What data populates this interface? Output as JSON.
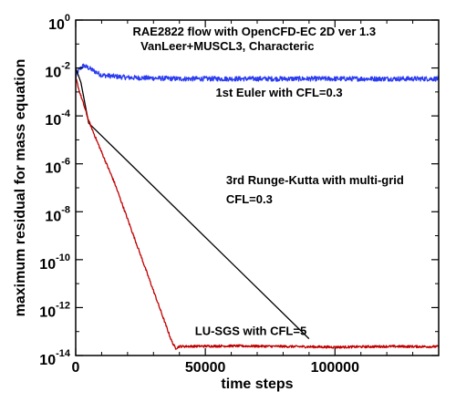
{
  "chart_data": {
    "type": "line",
    "title": "RAE2822 flow with OpenCFD-EC 2D ver 1.3",
    "subtitle": "VanLeer+MUSCL3, Characteric",
    "xlabel": "time steps",
    "ylabel": "maximum residual for mass equation",
    "xlim": [
      0,
      140000
    ],
    "ylim_log10": [
      -14,
      0
    ],
    "yscale": "log",
    "grid": false,
    "x_ticks": [
      {
        "value": 0,
        "label": "0"
      },
      {
        "value": 50000,
        "label": "50000"
      },
      {
        "value": 100000,
        "label": "100000"
      }
    ],
    "y_ticks": [
      {
        "exp": 0,
        "base": "10",
        "sup": "0"
      },
      {
        "exp": -2,
        "base": "10",
        "sup": "-2"
      },
      {
        "exp": -4,
        "base": "10",
        "sup": "-4"
      },
      {
        "exp": -6,
        "base": "10",
        "sup": "-6"
      },
      {
        "exp": -8,
        "base": "10",
        "sup": "-8"
      },
      {
        "exp": -10,
        "base": "10",
        "sup": "-10"
      },
      {
        "exp": -12,
        "base": "10",
        "sup": "-12"
      },
      {
        "exp": -14,
        "base": "10",
        "sup": "-14"
      }
    ],
    "series": [
      {
        "label": "1st Euler with CFL=0.3",
        "color": "#2a3cf0",
        "noise": 0.1,
        "x": [
          0,
          1000,
          3000,
          5000,
          10000,
          20000,
          40000,
          60000,
          80000,
          100000,
          120000,
          140000
        ],
        "log10_y": [
          -2.4,
          -2.1,
          -1.9,
          -2.0,
          -2.3,
          -2.4,
          -2.45,
          -2.45,
          -2.45,
          -2.45,
          -2.45,
          -2.45
        ]
      },
      {
        "label": "3rd Runge-Kutta with multi-grid CFL=0.3",
        "color": "#000000",
        "noise": 0,
        "x": [
          0,
          2000,
          5000,
          90000
        ],
        "log10_y": [
          -2.0,
          -2.6,
          -4.3,
          -13.3
        ]
      },
      {
        "label": "LU-SGS with CFL=5",
        "color": "#c00000",
        "noise": 0.05,
        "x": [
          0,
          1500,
          3000,
          5000,
          8000,
          15000,
          25000,
          34000,
          37000,
          38500,
          40000,
          60000,
          80000,
          100000,
          120000,
          140000
        ],
        "log10_y": [
          -2.4,
          -3.0,
          -3.5,
          -4.2,
          -5.0,
          -6.8,
          -9.8,
          -12.5,
          -13.4,
          -13.7,
          -13.62,
          -13.6,
          -13.62,
          -13.65,
          -13.62,
          -13.63
        ]
      }
    ],
    "annotations": [
      {
        "text": "RAE2822 flow with OpenCFD-EC 2D ver 1.3",
        "x": 22000,
        "log10_y": -0.65
      },
      {
        "text": "VanLeer+MUSCL3, Characteric",
        "x": 25000,
        "log10_y": -1.25
      },
      {
        "text": "1st Euler with CFL=0.3",
        "x": 54000,
        "log10_y": -3.2
      },
      {
        "text": "3rd Runge-Kutta with multi-grid",
        "x": 58000,
        "log10_y": -6.85
      },
      {
        "text": "CFL=0.3",
        "x": 58000,
        "log10_y": -7.65
      },
      {
        "text": "LU-SGS with CFL=5",
        "x": 46000,
        "log10_y": -13.15
      }
    ]
  }
}
